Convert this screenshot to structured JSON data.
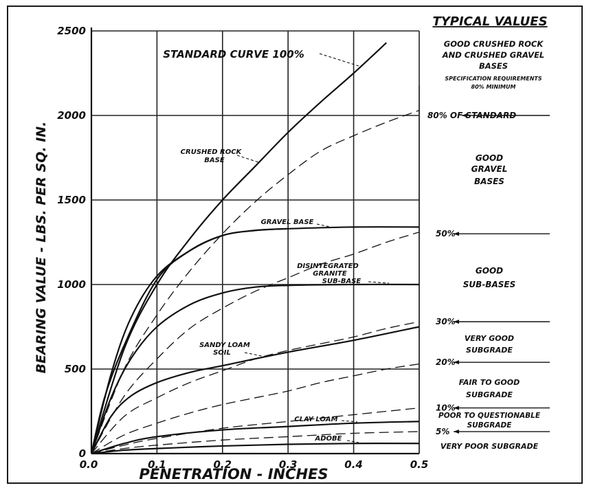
{
  "chart_data": {
    "type": "line",
    "xlabel": "PENETRATION - INCHES",
    "ylabel": "BEARING VALUE - LBS. PER SQ. IN.",
    "xlim": [
      0,
      0.5
    ],
    "ylim": [
      0,
      2500
    ],
    "x_ticks": [
      "0.0",
      "0.1",
      "0.2",
      "0.3",
      "0.4",
      "0.5"
    ],
    "y_ticks": [
      "0",
      "500",
      "1000",
      "1500",
      "2000",
      "2500"
    ],
    "grid": true,
    "series": [
      {
        "name": "STANDARD CURVE 100%",
        "style": "solid",
        "x": [
          0,
          0.05,
          0.1,
          0.15,
          0.2,
          0.25,
          0.3,
          0.35,
          0.4,
          0.45
        ],
        "y": [
          0,
          620,
          1000,
          1270,
          1500,
          1700,
          1900,
          2080,
          2250,
          2430
        ]
      },
      {
        "name": "CRUSHED ROCK BASE",
        "style": "solid",
        "x": [
          0,
          0.03,
          0.06,
          0.1,
          0.15,
          0.2,
          0.25,
          0.3
        ],
        "y": [
          0,
          470,
          800,
          1050,
          1200,
          1290,
          1320,
          1330
        ]
      },
      {
        "name": "GRAVEL BASE",
        "style": "solid",
        "x": [
          0,
          0.02,
          0.05,
          0.1,
          0.15,
          0.2,
          0.25,
          0.3,
          0.4,
          0.5
        ],
        "y": [
          0,
          330,
          640,
          1030,
          1200,
          1290,
          1320,
          1330,
          1340,
          1340
        ]
      },
      {
        "name": "DISINTEGRATED GRANITE SUB-BASE",
        "style": "solid",
        "x": [
          0,
          0.03,
          0.06,
          0.1,
          0.15,
          0.2,
          0.25,
          0.3,
          0.4,
          0.5
        ],
        "y": [
          0,
          330,
          560,
          750,
          880,
          950,
          985,
          995,
          1000,
          1000
        ]
      },
      {
        "name": "SANDY LOAM SOIL",
        "style": "solid",
        "x": [
          0,
          0.03,
          0.06,
          0.1,
          0.15,
          0.2,
          0.3,
          0.4,
          0.5
        ],
        "y": [
          0,
          220,
          340,
          420,
          480,
          520,
          600,
          670,
          750
        ]
      },
      {
        "name": "CLAY LOAM",
        "style": "solid",
        "x": [
          0,
          0.05,
          0.1,
          0.2,
          0.3,
          0.4,
          0.5
        ],
        "y": [
          0,
          60,
          100,
          140,
          160,
          180,
          190
        ]
      },
      {
        "name": "ADOBE",
        "style": "solid",
        "x": [
          0,
          0.05,
          0.1,
          0.2,
          0.3,
          0.4,
          0.5
        ],
        "y": [
          0,
          20,
          30,
          45,
          55,
          60,
          60
        ]
      },
      {
        "name": "80% OF STANDARD",
        "style": "dashed",
        "x": [
          0,
          0.05,
          0.1,
          0.15,
          0.2,
          0.25,
          0.3,
          0.35,
          0.4,
          0.45,
          0.5
        ],
        "y": [
          0,
          500,
          820,
          1080,
          1300,
          1490,
          1650,
          1790,
          1880,
          1960,
          2030
        ]
      },
      {
        "name": "50%",
        "style": "dashed",
        "x": [
          0,
          0.05,
          0.1,
          0.15,
          0.2,
          0.25,
          0.3,
          0.35,
          0.4,
          0.45,
          0.5
        ],
        "y": [
          0,
          340,
          560,
          740,
          860,
          960,
          1040,
          1120,
          1180,
          1250,
          1310
        ]
      },
      {
        "name": "30%",
        "style": "dashed",
        "x": [
          0,
          0.05,
          0.1,
          0.15,
          0.2,
          0.25,
          0.3,
          0.35,
          0.4,
          0.45,
          0.5
        ],
        "y": [
          0,
          220,
          330,
          420,
          490,
          560,
          610,
          650,
          690,
          740,
          780
        ]
      },
      {
        "name": "20%",
        "style": "dashed",
        "x": [
          0,
          0.05,
          0.1,
          0.15,
          0.2,
          0.25,
          0.3,
          0.35,
          0.4,
          0.45,
          0.5
        ],
        "y": [
          0,
          110,
          180,
          240,
          290,
          330,
          370,
          420,
          460,
          500,
          530
        ]
      },
      {
        "name": "10%",
        "style": "dashed",
        "x": [
          0,
          0.05,
          0.1,
          0.2,
          0.3,
          0.4,
          0.5
        ],
        "y": [
          0,
          50,
          90,
          150,
          190,
          230,
          270
        ]
      },
      {
        "name": "5%",
        "style": "dashed",
        "x": [
          0,
          0.05,
          0.1,
          0.2,
          0.3,
          0.4,
          0.5
        ],
        "y": [
          0,
          30,
          50,
          80,
          100,
          120,
          130
        ]
      }
    ],
    "typical_values": {
      "title": "TYPICAL VALUES",
      "top_group": [
        "GOOD CRUSHED ROCK",
        "AND CRUSHED GRAVEL",
        "BASES",
        "SPECIFICATION REQUIREMENTS",
        "80% MINIMUM"
      ],
      "markers": [
        {
          "label": "80% OF STANDARD",
          "value": 2000
        },
        {
          "label": "50%",
          "value": 1300
        },
        {
          "label": "30%",
          "value": 780
        },
        {
          "label": "20%",
          "value": 540
        },
        {
          "label": "10%",
          "value": 270
        },
        {
          "label": "5%",
          "value": 130
        }
      ],
      "zones": [
        {
          "lines": [
            "GOOD",
            "GRAVEL",
            "BASES"
          ]
        },
        {
          "lines": [
            "GOOD",
            "SUB-BASES"
          ]
        },
        {
          "lines": [
            "VERY GOOD",
            "SUBGRADE"
          ]
        },
        {
          "lines": [
            "FAIR TO GOOD",
            "SUBGRADE"
          ]
        },
        {
          "lines": [
            "POOR TO QUESTIONABLE",
            "SUBGRADE"
          ]
        },
        {
          "lines": [
            "VERY POOR SUBGRADE"
          ]
        }
      ]
    },
    "annotations": [
      {
        "text": "STANDARD CURVE 100%"
      },
      {
        "text": "CRUSHED ROCK"
      },
      {
        "text": "BASE"
      },
      {
        "text": "GRAVEL BASE"
      },
      {
        "text": "DISINTEGRATED"
      },
      {
        "text": "GRANITE"
      },
      {
        "text": "SUB-BASE"
      },
      {
        "text": "SANDY LOAM"
      },
      {
        "text": "SOIL"
      },
      {
        "text": "CLAY LOAM"
      },
      {
        "text": "ADOBE"
      }
    ]
  }
}
